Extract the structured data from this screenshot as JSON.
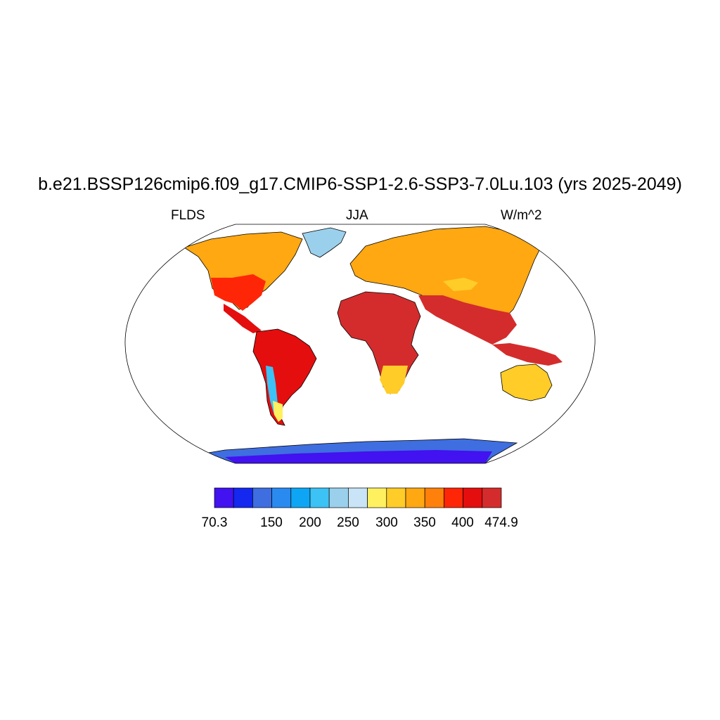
{
  "title": "b.e21.BSSP126cmip6.f09_g17.CMIP6-SSP1-2.6-SSP3-7.0Lu.103 (yrs 2025-2049)",
  "subtitle_left": "FLDS",
  "subtitle_center": "JJA",
  "subtitle_right": "W/m^2",
  "colorbar": {
    "colors": [
      "#4212f0",
      "#1428f0",
      "#3e6ee0",
      "#2a8af0",
      "#0ea6f4",
      "#3cc2f4",
      "#9ad0ec",
      "#c8e4f6",
      "#fff060",
      "#ffcc28",
      "#ffa812",
      "#ff800a",
      "#ff2608",
      "#e40e0e",
      "#d42c2c"
    ],
    "labels": [
      {
        "text": "70.3",
        "boundary": 0
      },
      {
        "text": "150",
        "boundary": 2
      },
      {
        "text": "200",
        "boundary": 3
      },
      {
        "text": "250",
        "boundary": 4
      },
      {
        "text": "300",
        "boundary": 5
      },
      {
        "text": "350",
        "boundary": 6
      },
      {
        "text": "400",
        "boundary": 7
      },
      {
        "text": "474.9",
        "boundary": 8
      }
    ]
  }
}
